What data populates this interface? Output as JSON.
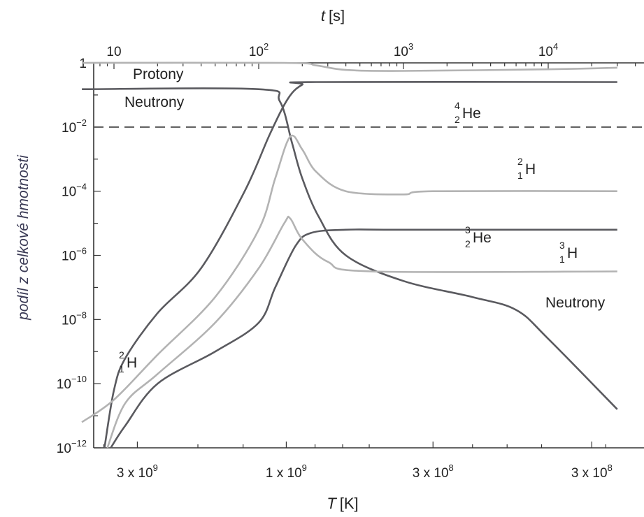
{
  "chart_data": {
    "type": "line",
    "top_axis": {
      "label_var": "t",
      "label_unit": "[s]",
      "scale": "log",
      "ticks": [
        {
          "value": 10,
          "base": "10",
          "exp": ""
        },
        {
          "value": 100,
          "base": "10",
          "exp": "2"
        },
        {
          "value": 1000,
          "base": "10",
          "exp": "3"
        },
        {
          "value": 10000,
          "base": "10",
          "exp": "4"
        }
      ]
    },
    "x_axis": {
      "label_var": "T",
      "label_unit": "[K]",
      "direction": "decreasing temperature",
      "ticks": [
        {
          "t_s": 14.5,
          "base": "3 x 10",
          "exp": "9"
        },
        {
          "t_s": 155,
          "base": "1 x 10",
          "exp": "9"
        },
        {
          "t_s": 1600,
          "base": "3 x 10",
          "exp": "8"
        },
        {
          "t_s": 20000,
          "base": "3 x 10",
          "exp": "8"
        }
      ]
    },
    "y_axis": {
      "label": "podíl z celkové hmotnosti",
      "scale": "log",
      "range_log10": [
        -12,
        0
      ],
      "ticks": [
        {
          "log": 0,
          "base": "1",
          "exp": ""
        },
        {
          "log": -2,
          "base": "10",
          "exp": "−2"
        },
        {
          "log": -4,
          "base": "10",
          "exp": "−4"
        },
        {
          "log": -6,
          "base": "10",
          "exp": "−6"
        },
        {
          "log": -8,
          "base": "10",
          "exp": "−8"
        },
        {
          "log": -10,
          "base": "10",
          "exp": "−10"
        },
        {
          "log": -12,
          "base": "10",
          "exp": "−12"
        }
      ]
    },
    "reference_line": {
      "log10_y": -2,
      "style": "dashed"
    },
    "series": [
      {
        "key": "protony",
        "shade": "light",
        "points": [
          [
            6,
            0
          ],
          [
            150,
            0
          ],
          [
            250,
            -0.08
          ],
          [
            400,
            -0.22
          ],
          [
            1000,
            -0.25
          ],
          [
            10000,
            -0.2
          ],
          [
            30000,
            -0.15
          ]
        ]
      },
      {
        "key": "neutrony",
        "shade": "dark",
        "points": [
          [
            6,
            -0.82
          ],
          [
            100,
            -0.82
          ],
          [
            140,
            -1.2
          ],
          [
            170,
            -2.5
          ],
          [
            200,
            -3.6
          ],
          [
            260,
            -4.8
          ],
          [
            400,
            -6.0
          ],
          [
            1000,
            -6.8
          ],
          [
            3000,
            -7.3
          ],
          [
            6000,
            -7.7
          ],
          [
            10000,
            -8.6
          ],
          [
            30000,
            -10.8
          ]
        ]
      },
      {
        "key": "he4",
        "shade": "dark",
        "points": [
          [
            8.6,
            -12
          ],
          [
            10,
            -10.2
          ],
          [
            12,
            -9.2
          ],
          [
            20,
            -7.8
          ],
          [
            40,
            -6.4
          ],
          [
            80,
            -4.0
          ],
          [
            120,
            -2.2
          ],
          [
            160,
            -1.1
          ],
          [
            200,
            -0.68
          ],
          [
            250,
            -0.6
          ],
          [
            30000,
            -0.6
          ]
        ]
      },
      {
        "key": "h2",
        "shade": "light",
        "points": [
          [
            6,
            -11.2
          ],
          [
            10,
            -10.5
          ],
          [
            20,
            -9.1
          ],
          [
            50,
            -7.3
          ],
          [
            100,
            -5.2
          ],
          [
            130,
            -3.6
          ],
          [
            165,
            -2.3
          ],
          [
            200,
            -2.7
          ],
          [
            250,
            -3.4
          ],
          [
            400,
            -4.0
          ],
          [
            1000,
            -4.1
          ],
          [
            1600,
            -4.0
          ],
          [
            30000,
            -4.0
          ]
        ]
      },
      {
        "key": "he3",
        "shade": "dark",
        "points": [
          [
            9.5,
            -12
          ],
          [
            12,
            -11.3
          ],
          [
            20,
            -10.0
          ],
          [
            50,
            -9.0
          ],
          [
            100,
            -8.1
          ],
          [
            130,
            -7.0
          ],
          [
            180,
            -5.7
          ],
          [
            230,
            -5.3
          ],
          [
            400,
            -5.2
          ],
          [
            1000,
            -5.2
          ],
          [
            30000,
            -5.2
          ]
        ]
      },
      {
        "key": "h3",
        "shade": "light",
        "points": [
          [
            9,
            -12
          ],
          [
            12,
            -10.6
          ],
          [
            20,
            -9.7
          ],
          [
            50,
            -8.1
          ],
          [
            100,
            -6.4
          ],
          [
            150,
            -5.0
          ],
          [
            165,
            -4.85
          ],
          [
            200,
            -5.5
          ],
          [
            300,
            -6.2
          ],
          [
            600,
            -6.5
          ],
          [
            30000,
            -6.5
          ]
        ]
      }
    ],
    "curve_labels": [
      {
        "key": "protony",
        "text": "Protony"
      },
      {
        "key": "neutrony_top",
        "text": "Neutrony"
      },
      {
        "key": "neutrony_bottom",
        "text": "Neutrony"
      },
      {
        "key": "he4",
        "A": "4",
        "Z": "2",
        "sym": "He"
      },
      {
        "key": "h2",
        "A": "2",
        "Z": "1",
        "sym": "H"
      },
      {
        "key": "he3",
        "A": "3",
        "Z": "2",
        "sym": "He"
      },
      {
        "key": "h3",
        "A": "3",
        "Z": "1",
        "sym": "H"
      },
      {
        "key": "h2_left",
        "A": "2",
        "Z": "1",
        "sym": "H"
      }
    ],
    "colors": {
      "dark": "#5a5a5f",
      "light": "#b3b3b3",
      "axis": "#333333",
      "ylabel": "#3a3a55"
    },
    "grid": false
  }
}
